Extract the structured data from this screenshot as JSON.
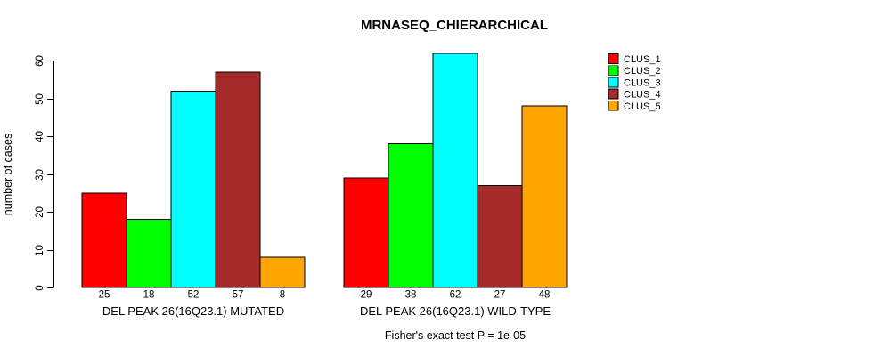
{
  "figure": {
    "background": "#FFFFFF",
    "axis_color": "#000000",
    "bar_border_color": "#000000"
  },
  "chart_data": {
    "type": "bar",
    "title": "MRNASEQ_CHIERARCHICAL",
    "xlabel": "",
    "ylabel": "number of cases",
    "ylim": [
      0,
      60
    ],
    "yticks": [
      0,
      10,
      20,
      30,
      40,
      50,
      60
    ],
    "grid": false,
    "categories": [
      "DEL PEAK 26(16Q23.1) MUTATED",
      "DEL PEAK 26(16Q23.1) WILD-TYPE"
    ],
    "series": [
      {
        "name": "CLUS_1",
        "color": "#FF0000",
        "values": [
          25,
          29
        ]
      },
      {
        "name": "CLUS_2",
        "color": "#00FF00",
        "values": [
          18,
          38
        ]
      },
      {
        "name": "CLUS_3",
        "color": "#00FFFF",
        "values": [
          52,
          62
        ]
      },
      {
        "name": "CLUS_4",
        "color": "#A52A2A",
        "values": [
          57,
          27
        ]
      },
      {
        "name": "CLUS_5",
        "color": "#FFA500",
        "values": [
          8,
          48
        ]
      }
    ],
    "bar_value_labels": [
      [
        25,
        18,
        52,
        57,
        8
      ],
      [
        29,
        38,
        62,
        27,
        48
      ]
    ],
    "value_labels_shown": true,
    "legend": {
      "position": "top-right",
      "entries": [
        "CLUS_1",
        "CLUS_2",
        "CLUS_3",
        "CLUS_4",
        "CLUS_5"
      ]
    },
    "caption": "Fisher's exact test P = 1e-05"
  }
}
